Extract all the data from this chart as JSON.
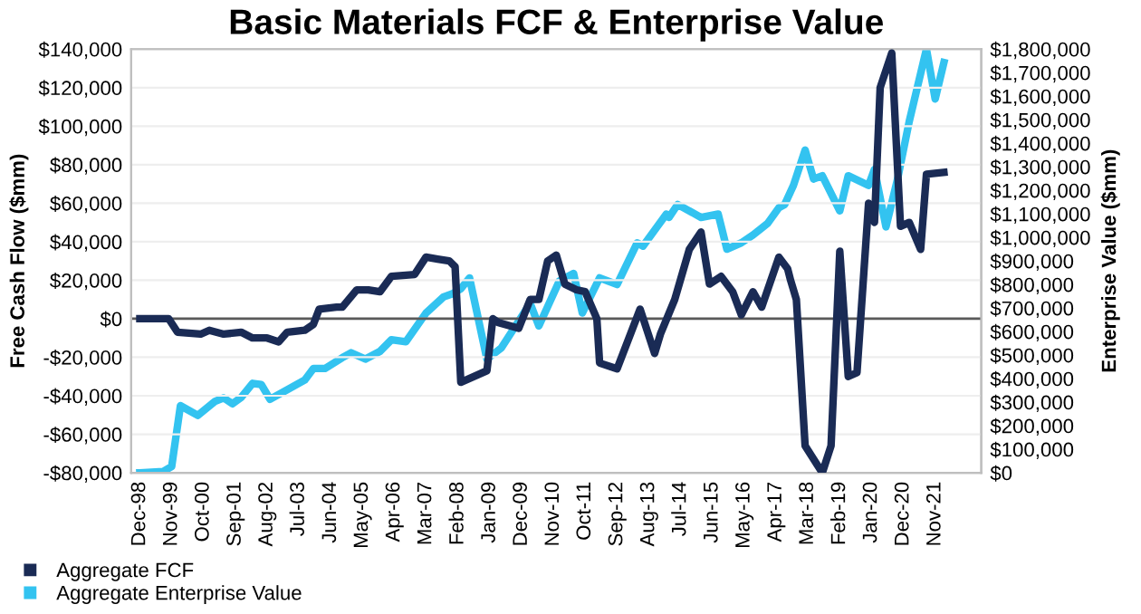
{
  "chart_data": {
    "type": "line",
    "title": "Basic Materials FCF & Enterprise Value",
    "ylabel": "Free Cash Flow ($mm)",
    "y2label": "Enterprise Value ($mm)",
    "xlim": [
      "1998-09",
      "2023-03"
    ],
    "xticks": [
      {
        "value": "1998-12",
        "label": "Dec-98"
      },
      {
        "value": "1999-11",
        "label": "Nov-99"
      },
      {
        "value": "2000-10",
        "label": "Oct-00"
      },
      {
        "value": "2001-09",
        "label": "Sep-01"
      },
      {
        "value": "2002-08",
        "label": "Aug-02"
      },
      {
        "value": "2003-07",
        "label": "Jul-03"
      },
      {
        "value": "2004-06",
        "label": "Jun-04"
      },
      {
        "value": "2005-05",
        "label": "May-05"
      },
      {
        "value": "2006-04",
        "label": "Apr-06"
      },
      {
        "value": "2007-03",
        "label": "Mar-07"
      },
      {
        "value": "2008-02",
        "label": "Feb-08"
      },
      {
        "value": "2009-01",
        "label": "Jan-09"
      },
      {
        "value": "2009-12",
        "label": "Dec-09"
      },
      {
        "value": "2010-11",
        "label": "Nov-10"
      },
      {
        "value": "2011-10",
        "label": "Oct-11"
      },
      {
        "value": "2012-09",
        "label": "Sep-12"
      },
      {
        "value": "2013-08",
        "label": "Aug-13"
      },
      {
        "value": "2014-07",
        "label": "Jul-14"
      },
      {
        "value": "2015-06",
        "label": "Jun-15"
      },
      {
        "value": "2016-05",
        "label": "May-16"
      },
      {
        "value": "2017-04",
        "label": "Apr-17"
      },
      {
        "value": "2018-03",
        "label": "Mar-18"
      },
      {
        "value": "2019-02",
        "label": "Feb-19"
      },
      {
        "value": "2020-01",
        "label": "Jan-20"
      },
      {
        "value": "2020-12",
        "label": "Dec-20"
      },
      {
        "value": "2021-11",
        "label": "Nov-21"
      }
    ],
    "ylim": [
      -80000,
      140000
    ],
    "yticks": [
      {
        "value": -80000,
        "label": "-$80,000"
      },
      {
        "value": -60000,
        "label": "-$60,000"
      },
      {
        "value": -40000,
        "label": "-$40,000"
      },
      {
        "value": -20000,
        "label": "-$20,000"
      },
      {
        "value": 0,
        "label": "$0"
      },
      {
        "value": 20000,
        "label": "$20,000"
      },
      {
        "value": 40000,
        "label": "$40,000"
      },
      {
        "value": 60000,
        "label": "$60,000"
      },
      {
        "value": 80000,
        "label": "$80,000"
      },
      {
        "value": 100000,
        "label": "$100,000"
      },
      {
        "value": 120000,
        "label": "$120,000"
      },
      {
        "value": 140000,
        "label": "$140,000"
      }
    ],
    "y2lim": [
      0,
      1800000
    ],
    "y2ticks": [
      {
        "value": 0,
        "label": "$0"
      },
      {
        "value": 100000,
        "label": "$100,000"
      },
      {
        "value": 200000,
        "label": "$200,000"
      },
      {
        "value": 300000,
        "label": "$300,000"
      },
      {
        "value": 400000,
        "label": "$400,000"
      },
      {
        "value": 500000,
        "label": "$500,000"
      },
      {
        "value": 600000,
        "label": "$600,000"
      },
      {
        "value": 700000,
        "label": "$700,000"
      },
      {
        "value": 800000,
        "label": "$800,000"
      },
      {
        "value": 900000,
        "label": "$900,000"
      },
      {
        "value": 1000000,
        "label": "$1,000,000"
      },
      {
        "value": 1100000,
        "label": "$1,100,000"
      },
      {
        "value": 1200000,
        "label": "$1,200,000"
      },
      {
        "value": 1300000,
        "label": "$1,300,000"
      },
      {
        "value": 1400000,
        "label": "$1,400,000"
      },
      {
        "value": 1500000,
        "label": "$1,500,000"
      },
      {
        "value": 1600000,
        "label": "$1,600,000"
      },
      {
        "value": 1700000,
        "label": "$1,700,000"
      },
      {
        "value": 1800000,
        "label": "$1,800,000"
      }
    ],
    "grid": "y",
    "legend": "bottom left",
    "line_style": "solid",
    "marker": "none",
    "ref_lines": [
      {
        "axis": "y",
        "value": 0,
        "color": "#595959"
      }
    ],
    "series": [
      {
        "name": "Aggregate FCF",
        "color": "#1a2b55",
        "x": [
          "1998-12",
          "1999-10",
          "2000-01",
          "2000-09",
          "2000-12",
          "2001-05",
          "2001-11",
          "2002-03",
          "2002-08",
          "2002-12",
          "2003-03",
          "2003-09",
          "2003-12",
          "2004-02",
          "2004-08",
          "2004-10",
          "2005-03",
          "2005-07",
          "2005-11",
          "2006-03",
          "2006-11",
          "2007-03",
          "2007-07",
          "2007-11",
          "2008-01",
          "2008-03",
          "2008-12",
          "2009-02",
          "2009-04",
          "2009-11",
          "2010-03",
          "2010-06",
          "2010-09",
          "2010-12",
          "2011-03",
          "2011-07",
          "2011-10",
          "2012-02",
          "2012-03",
          "2012-09",
          "2013-05",
          "2013-10",
          "2013-12",
          "2014-05",
          "2014-10",
          "2015-02",
          "2015-05",
          "2015-09",
          "2016-01",
          "2016-04",
          "2016-08",
          "2016-11",
          "2017-05",
          "2017-08",
          "2017-09",
          "2017-11",
          "2018-02",
          "2018-08",
          "2018-11",
          "2019-02",
          "2019-05",
          "2019-08",
          "2019-12",
          "2020-02",
          "2020-04",
          "2020-08",
          "2020-11",
          "2021-02",
          "2021-06",
          "2021-08",
          "2022-02"
        ],
        "values": [
          0,
          0,
          -7000,
          -8000,
          -6000,
          -8000,
          -7000,
          -10000,
          -10000,
          -12000,
          -7000,
          -6000,
          -3000,
          5000,
          6000,
          6000,
          15000,
          15000,
          14000,
          22000,
          23000,
          32000,
          31000,
          30000,
          27000,
          -33000,
          -27000,
          0,
          -2000,
          -5000,
          10000,
          10000,
          30000,
          33000,
          18000,
          15000,
          14000,
          0,
          -23000,
          -26000,
          5000,
          -18000,
          -8000,
          10000,
          36000,
          45000,
          18000,
          22000,
          14000,
          2000,
          14000,
          6000,
          32000,
          26000,
          20000,
          10000,
          -66000,
          -80000,
          -66000,
          35000,
          -30000,
          -28000,
          60000,
          50000,
          120000,
          138000,
          48000,
          50000,
          36000,
          75000,
          76000
        ]
      },
      {
        "name": "Aggregate Enterprise Value",
        "color": "#33c3f0",
        "axis": "y2",
        "x": [
          "1998-12",
          "1999-08",
          "1999-11",
          "2000-02",
          "2000-08",
          "2001-02",
          "2001-05",
          "2001-08",
          "2001-11",
          "2002-03",
          "2002-06",
          "2002-09",
          "2003-03",
          "2003-09",
          "2003-12",
          "2004-04",
          "2004-10",
          "2005-01",
          "2005-06",
          "2005-11",
          "2006-03",
          "2006-08",
          "2007-03",
          "2007-09",
          "2007-12",
          "2008-03",
          "2008-06",
          "2008-12",
          "2009-05",
          "2010-03",
          "2010-06",
          "2011-01",
          "2011-06",
          "2011-09",
          "2012-03",
          "2012-09",
          "2013-04",
          "2013-06",
          "2014-02",
          "2014-03",
          "2014-06",
          "2015-02",
          "2015-08",
          "2015-11",
          "2016-04",
          "2016-08",
          "2017-01",
          "2017-05",
          "2017-07",
          "2017-10",
          "2018-02",
          "2018-05",
          "2018-08",
          "2019-02",
          "2019-05",
          "2019-12",
          "2020-02",
          "2020-06",
          "2020-10",
          "2021-02",
          "2021-08",
          "2021-11",
          "2022-02"
        ],
        "values": [
          0,
          5000,
          27000,
          285000,
          244000,
          304000,
          318000,
          293000,
          320000,
          380000,
          375000,
          312000,
          353000,
          394000,
          443000,
          443000,
          489000,
          510000,
          483000,
          516000,
          565000,
          557000,
          679000,
          747000,
          760000,
          782000,
          828000,
          483000,
          530000,
          720000,
          624000,
          814000,
          847000,
          679000,
          828000,
          800000,
          977000,
          963000,
          1099000,
          1085000,
          1140000,
          1085000,
          1099000,
          950000,
          977000,
          1010000,
          1059000,
          1126000,
          1140000,
          1221000,
          1371000,
          1248000,
          1262000,
          1113000,
          1262000,
          1221000,
          1289000,
          1045000,
          1248000,
          1493000,
          1800000,
          1588000,
          1743000
        ]
      }
    ]
  }
}
